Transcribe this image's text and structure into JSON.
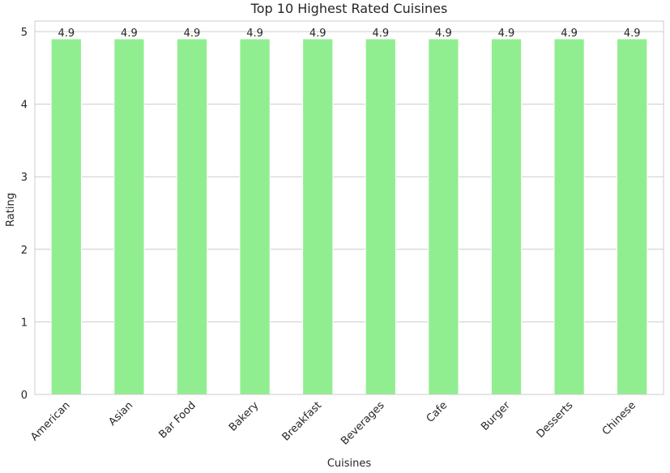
{
  "chart_data": {
    "type": "bar",
    "title": "Top 10 Highest Rated Cuisines",
    "xlabel": "Cuisines",
    "ylabel": "Rating",
    "categories": [
      "American",
      "Asian",
      "Bar Food",
      "Bakery",
      "Breakfast",
      "Beverages",
      "Cafe",
      "Burger",
      "Desserts",
      "Chinese"
    ],
    "values": [
      4.9,
      4.9,
      4.9,
      4.9,
      4.9,
      4.9,
      4.9,
      4.9,
      4.9,
      4.9
    ],
    "data_labels": [
      "4.9",
      "4.9",
      "4.9",
      "4.9",
      "4.9",
      "4.9",
      "4.9",
      "4.9",
      "4.9",
      "4.9"
    ],
    "yticks": [
      0,
      1,
      2,
      3,
      4,
      5
    ],
    "ylim": [
      0,
      5.145
    ],
    "grid": "horizontal",
    "bar_color": "#90ee90",
    "tick_label_rotation": 45
  }
}
